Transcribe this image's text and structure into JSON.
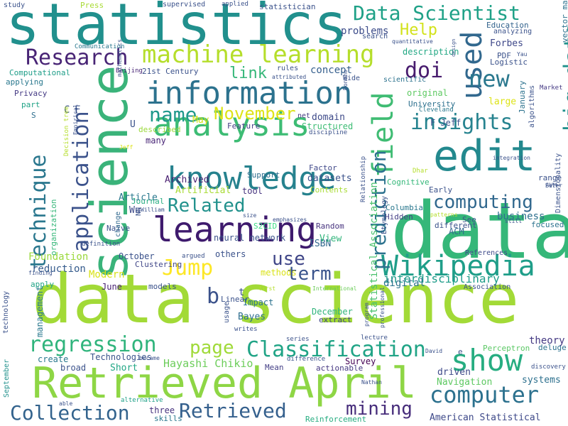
{
  "colors": {
    "background": "#ffffff",
    "palette": [
      "#440154",
      "#472c7a",
      "#3b528b",
      "#2c728e",
      "#21908d",
      "#27ad81",
      "#5cc863",
      "#aadc32",
      "#fde725"
    ]
  },
  "words": [
    {
      "text": "data science",
      "color": "#a2da37"
    },
    {
      "text": "data",
      "color": "#35b779"
    },
    {
      "text": "statistics",
      "color": "#21908d"
    },
    {
      "text": "science",
      "color": "#3ab37a"
    },
    {
      "text": "learning",
      "color": "#3e1a6d"
    },
    {
      "text": "Retrieved April",
      "color": "#8ed645"
    },
    {
      "text": "information",
      "color": "#2c728e"
    },
    {
      "text": "edit",
      "color": "#23898e"
    },
    {
      "text": "analysis",
      "color": "#3dbc74"
    },
    {
      "text": "knowledge",
      "color": "#26828e"
    },
    {
      "text": "machine learning",
      "color": "#b5de2b"
    },
    {
      "text": "used",
      "color": "#31688e"
    },
    {
      "text": "field",
      "color": "#3fbc73"
    },
    {
      "text": "Wikipedia",
      "color": "#1f9e89"
    },
    {
      "text": "technique",
      "color": "#2a778e"
    },
    {
      "text": "application",
      "color": "#3b528b"
    },
    {
      "text": "show",
      "color": "#27ad81"
    },
    {
      "text": "big data",
      "color": "#21918c"
    },
    {
      "text": "Classification",
      "color": "#20a486"
    },
    {
      "text": "regression",
      "color": "#2fb47c"
    },
    {
      "text": "computer",
      "color": "#2c718e"
    },
    {
      "text": "Data Scientist",
      "color": "#1fa187"
    },
    {
      "text": "Research",
      "color": "#482475"
    },
    {
      "text": "insights",
      "color": "#26838f"
    },
    {
      "text": "prediction",
      "color": "#2c728e"
    },
    {
      "text": "Jump",
      "color": "#fde725"
    },
    {
      "text": "computing",
      "color": "#31688e"
    },
    {
      "text": "Collection",
      "color": "#33638d"
    },
    {
      "text": "Retrieved",
      "color": "#35608d"
    },
    {
      "text": "new",
      "color": "#2a788e"
    },
    {
      "text": "name",
      "color": "#1f988b"
    },
    {
      "text": "Related",
      "color": "#21918c"
    },
    {
      "text": "page",
      "color": "#a0da39"
    },
    {
      "text": "mining",
      "color": "#472d7b"
    },
    {
      "text": "link",
      "color": "#35b779"
    },
    {
      "text": "doi",
      "color": "#481c6e"
    },
    {
      "text": "November",
      "color": "#dde318"
    },
    {
      "text": "term",
      "color": "#3a548c"
    },
    {
      "text": "use",
      "color": "#404688"
    },
    {
      "text": "Help",
      "color": "#d2e21b"
    },
    {
      "text": "b",
      "color": "#3b528b"
    },
    {
      "text": "interdisciplinary",
      "color": "#1e9c89"
    },
    {
      "text": "business",
      "color": "#2d708e"
    },
    {
      "text": "digital",
      "color": "#2c728e"
    },
    {
      "text": "Statistical Association",
      "color": "#4ac16d"
    },
    {
      "text": "Hayashi Chikio",
      "color": "#6ccd5a"
    },
    {
      "text": "problems",
      "color": "#3d4d8a"
    },
    {
      "text": "concept",
      "color": "#355f8d"
    },
    {
      "text": "Modern",
      "color": "#d8e219"
    },
    {
      "text": "Foundation",
      "color": "#9bd93c"
    },
    {
      "text": "reduction",
      "color": "#365c8d"
    },
    {
      "text": "management",
      "color": "#2a788e"
    },
    {
      "text": "Education",
      "color": "#33638d"
    },
    {
      "text": "Forbes",
      "color": "#3f4889"
    },
    {
      "text": "Logistic",
      "color": "#3b528b"
    },
    {
      "text": "American Statistical",
      "color": "#3e4989"
    },
    {
      "text": "Navigation",
      "color": "#5ec962"
    },
    {
      "text": "systems",
      "color": "#2d708e"
    },
    {
      "text": "theory",
      "color": "#443983"
    },
    {
      "text": "Perceptron",
      "color": "#5ac864"
    },
    {
      "text": "driven",
      "color": "#3e4a89"
    },
    {
      "text": "Reinforcement",
      "color": "#27ad81"
    },
    {
      "text": "Technologies",
      "color": "#3a548c"
    },
    {
      "text": "Short",
      "color": "#22a785"
    },
    {
      "text": "skills",
      "color": "#2a778e"
    },
    {
      "text": "three",
      "color": "#46327e"
    },
    {
      "text": "alternative",
      "color": "#1fa188"
    },
    {
      "text": "create",
      "color": "#2a788e"
    },
    {
      "text": "broad",
      "color": "#3b528b"
    },
    {
      "text": "Survey",
      "color": "#440154"
    },
    {
      "text": "actionable",
      "color": "#453781"
    },
    {
      "text": "Mean",
      "color": "#433e85"
    },
    {
      "text": "extract",
      "color": "#404588"
    },
    {
      "text": "December",
      "color": "#31b57b"
    },
    {
      "text": "Bayes",
      "color": "#2e6e8e"
    },
    {
      "text": "Linear",
      "color": "#3b528b"
    },
    {
      "text": "t",
      "color": "#3b528b"
    },
    {
      "text": "Impact",
      "color": "#2c728e"
    },
    {
      "text": "methods",
      "color": "#dae319"
    },
    {
      "text": "ISBN",
      "color": "#31688e"
    },
    {
      "text": "View",
      "color": "#31b57b"
    },
    {
      "text": "Random",
      "color": "#46327e"
    },
    {
      "text": "S2CID",
      "color": "#3ddc84"
    },
    {
      "text": "neural network",
      "color": "#3b528b"
    },
    {
      "text": "Journal",
      "color": "#27ad81"
    },
    {
      "text": "Archived",
      "color": "#481f70"
    },
    {
      "text": "Article",
      "color": "#2a788e"
    },
    {
      "text": "Artificial",
      "color": "#a8db34"
    },
    {
      "text": "datasets",
      "color": "#3b528b"
    },
    {
      "text": "tool",
      "color": "#46337e"
    },
    {
      "text": "Contents",
      "color": "#a8db34"
    },
    {
      "text": "Support",
      "color": "#2e6e8e"
    },
    {
      "text": "Factor",
      "color": "#3f4889"
    },
    {
      "text": "Feature",
      "color": "#433e85"
    },
    {
      "text": "Structured",
      "color": "#3dbc74"
    },
    {
      "text": "domain",
      "color": "#3e4a89"
    },
    {
      "text": "net",
      "color": "#443a83"
    },
    {
      "text": "described",
      "color": "#9bd93c"
    },
    {
      "text": "many",
      "color": "#482576"
    },
    {
      "text": "May",
      "color": "#d5e21a"
    },
    {
      "text": "Wu",
      "color": "#3e4a89"
    },
    {
      "text": "Naive",
      "color": "#3b528b"
    },
    {
      "text": "NN",
      "color": "#3b528b"
    },
    {
      "text": "change",
      "color": "#31688e"
    },
    {
      "text": "Clustering",
      "color": "#404688"
    },
    {
      "text": "October",
      "color": "#3b528b"
    },
    {
      "text": "others",
      "color": "#3b528b"
    },
    {
      "text": "June",
      "color": "#482173"
    },
    {
      "text": "models",
      "color": "#3b528b"
    },
    {
      "text": "apply",
      "color": "#20a386"
    },
    {
      "text": "organization",
      "color": "#35b779"
    },
    {
      "text": "Computational",
      "color": "#1f9e89"
    },
    {
      "text": "applying",
      "color": "#2a788e"
    },
    {
      "text": "Privacy",
      "color": "#443983"
    },
    {
      "text": "part",
      "color": "#20a386"
    },
    {
      "text": "S",
      "color": "#2e6e8e"
    },
    {
      "text": "C",
      "color": "#3b528b"
    },
    {
      "text": "F",
      "color": "#3b528b"
    },
    {
      "text": "Communication",
      "color": "#2a788e"
    },
    {
      "text": "21st Century",
      "color": "#3b528b"
    },
    {
      "text": "Beijing",
      "color": "#482576"
    },
    {
      "text": "rules",
      "color": "#3b528b"
    },
    {
      "text": "attributed",
      "color": "#3b528b"
    },
    {
      "text": "Wide",
      "color": "#3b528b"
    },
    {
      "text": "scientific",
      "color": "#2c728e"
    },
    {
      "text": "University",
      "color": "#2d708e"
    },
    {
      "text": "original",
      "color": "#5ec962"
    },
    {
      "text": "description",
      "color": "#22a884"
    },
    {
      "text": "Cleveland",
      "color": "#2a788e"
    },
    {
      "text": "discipline",
      "color": "#3b528b"
    },
    {
      "text": "Cognitive",
      "color": "#35b779"
    },
    {
      "text": "Early",
      "color": "#3b528b"
    },
    {
      "text": "Columbia",
      "color": "#2a788e"
    },
    {
      "text": "Hidden",
      "color": "#433e85"
    },
    {
      "text": "different",
      "color": "#3b528b"
    },
    {
      "text": "See",
      "color": "#3b528b"
    },
    {
      "text": "focused",
      "color": "#2c728e"
    },
    {
      "text": "range",
      "color": "#3b528b"
    },
    {
      "text": "SVM",
      "color": "#3b528b"
    },
    {
      "text": "ACM",
      "color": "#31688e"
    },
    {
      "text": "References",
      "color": "#3e4a89"
    },
    {
      "text": "Market",
      "color": "#443983"
    },
    {
      "text": "deluge",
      "color": "#2c728e"
    },
    {
      "text": "discovery",
      "color": "#3b528b"
    },
    {
      "text": "Association",
      "color": "#3b528b"
    },
    {
      "text": "PDF",
      "color": "#3b528b"
    },
    {
      "text": "Yau",
      "color": "#3b528b"
    },
    {
      "text": "large",
      "color": "#dde318"
    },
    {
      "text": "January",
      "color": "#2c728e"
    },
    {
      "text": "F Jeff",
      "color": "#3b528b"
    },
    {
      "text": "integration",
      "color": "#3b528b"
    },
    {
      "text": "Peter",
      "color": "#3b528b"
    },
    {
      "text": "vector machine",
      "color": "#2c728e"
    },
    {
      "text": "Dimensionality",
      "color": "#3b528b"
    },
    {
      "text": "analyzing",
      "color": "#3b528b"
    },
    {
      "text": "Etymology",
      "color": "#3b528b"
    },
    {
      "text": "Relationship",
      "color": "#3b528b"
    },
    {
      "text": "emphasizes",
      "color": "#3b528b"
    },
    {
      "text": "definition",
      "color": "#3b528b"
    },
    {
      "text": "argued",
      "color": "#3b528b"
    },
    {
      "text": "usage",
      "color": "#3b528b"
    },
    {
      "text": "writes",
      "color": "#3b528b"
    },
    {
      "text": "first",
      "color": "#b5de2b"
    },
    {
      "text": "International",
      "color": "#6ccd5a"
    },
    {
      "text": "program",
      "color": "#3b528b"
    },
    {
      "text": "lecture",
      "color": "#3b528b"
    },
    {
      "text": "professional",
      "color": "#3b528b"
    },
    {
      "text": "David",
      "color": "#3b528b"
    },
    {
      "text": "Nathan",
      "color": "#3b528b"
    },
    {
      "text": "series",
      "color": "#3b528b"
    },
    {
      "text": "became",
      "color": "#3b528b"
    },
    {
      "text": "difference",
      "color": "#3b528b"
    },
    {
      "text": "able",
      "color": "#3b528b"
    },
    {
      "text": "finding",
      "color": "#3b528b"
    },
    {
      "text": "William",
      "color": "#3b528b"
    },
    {
      "text": "Decision tree",
      "color": "#b5de2b"
    },
    {
      "text": "Empirical",
      "color": "#3b528b"
    },
    {
      "text": "mathematics",
      "color": "#3b528b"
    },
    {
      "text": "Jeff",
      "color": "#dde318"
    },
    {
      "text": "U",
      "color": "#3b528b"
    },
    {
      "text": "Dhar",
      "color": "#b5de2b"
    },
    {
      "text": "study",
      "color": "#3b528b"
    },
    {
      "text": "Press",
      "color": "#a8db34"
    },
    {
      "text": "supervised",
      "color": "#3b528b"
    },
    {
      "text": "applied",
      "color": "#3b528b"
    },
    {
      "text": "statistician",
      "color": "#3b528b"
    },
    {
      "text": "search",
      "color": "#3b528b"
    },
    {
      "text": "quantitative",
      "color": "#3b528b"
    },
    {
      "text": "Donoho",
      "color": "#3b528b"
    },
    {
      "text": "size",
      "color": "#3b528b"
    },
    {
      "text": "still",
      "color": "#3b528b"
    },
    {
      "text": "patterns",
      "color": "#b5de2b"
    },
    {
      "text": "algorithms",
      "color": "#3b528b"
    },
    {
      "text": "technology",
      "color": "#3b528b"
    },
    {
      "text": "September",
      "color": "#21918c"
    },
    {
      "text": "e",
      "color": "#3b528b"
    },
    {
      "text": "design",
      "color": "#3b528b"
    }
  ]
}
